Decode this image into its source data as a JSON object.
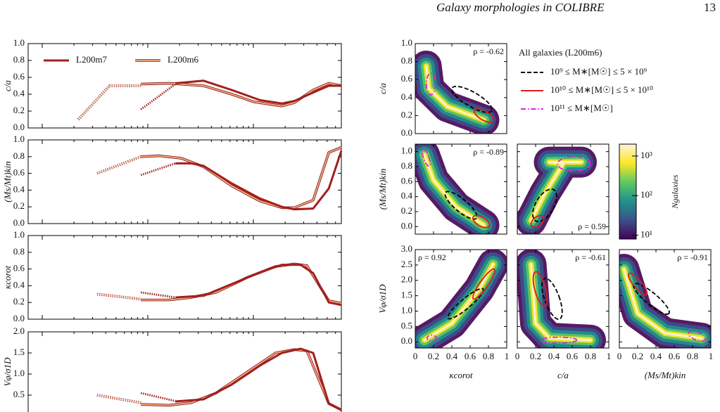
{
  "header": {
    "title": "Galaxy morphologies in COLIBRE",
    "page": "13"
  },
  "chart_data": [
    {
      "type": "line",
      "ylabel": "c/a",
      "xlim": [
        0,
        100
      ],
      "ylim": [
        0,
        1
      ],
      "yticks": [
        {
          "value": 0,
          "label": "0.0"
        },
        0.2,
        0.4,
        0.6,
        0.8,
        {
          "value": 1,
          "label": "1.0"
        }
      ],
      "legend": "upper left",
      "series": [
        {
          "name": "L200m7",
          "color": "#a31f1f",
          "x": [
            47,
            56,
            65,
            74,
            81,
            85,
            91,
            96,
            100
          ],
          "values": [
            0.53,
            0.56,
            0.45,
            0.33,
            0.29,
            0.32,
            0.42,
            0.5,
            0.5
          ]
        },
        {
          "name": "L200m6",
          "color": "#f4b183",
          "edgecolor": "#8b1a1a",
          "x": [
            36,
            45,
            56,
            65,
            72,
            81,
            85,
            91,
            96,
            100
          ],
          "values": [
            0.52,
            0.53,
            0.5,
            0.4,
            0.31,
            0.26,
            0.3,
            0.45,
            0.53,
            0.5
          ]
        },
        {
          "color": "#a31f1f",
          "linestyle": "dotted",
          "x": [
            36,
            47
          ],
          "values": [
            0.22,
            0.52
          ]
        },
        {
          "color": "#f4b183",
          "edgecolor": "#8b1a1a",
          "linestyle": "dotted",
          "x": [
            16,
            26,
            36
          ],
          "values": [
            0.1,
            0.5,
            0.5
          ]
        }
      ]
    },
    {
      "type": "line",
      "ylabel": "(Ms/Mt)kin",
      "xlim": [
        0,
        100
      ],
      "ylim": [
        0,
        1
      ],
      "yticks": [
        {
          "value": 0,
          "label": "0.0"
        },
        0.2,
        0.4,
        0.6,
        0.8,
        {
          "value": 1,
          "label": "1.0"
        }
      ],
      "series": [
        {
          "color": "#a31f1f",
          "x": [
            47,
            52,
            56,
            65,
            74,
            81,
            85,
            91,
            96,
            100
          ],
          "values": [
            0.72,
            0.72,
            0.69,
            0.48,
            0.3,
            0.2,
            0.17,
            0.18,
            0.42,
            0.87
          ]
        },
        {
          "color": "#f4b183",
          "edgecolor": "#8b1a1a",
          "x": [
            36,
            42,
            49,
            56,
            65,
            74,
            81,
            85,
            91,
            96,
            100
          ],
          "values": [
            0.8,
            0.81,
            0.78,
            0.68,
            0.45,
            0.27,
            0.19,
            0.19,
            0.28,
            0.85,
            0.91
          ]
        },
        {
          "color": "#a31f1f",
          "linestyle": "dotted",
          "x": [
            36,
            47
          ],
          "values": [
            0.58,
            0.72
          ]
        },
        {
          "color": "#f4b183",
          "edgecolor": "#8b1a1a",
          "linestyle": "dotted",
          "x": [
            22,
            36
          ],
          "values": [
            0.6,
            0.8
          ]
        }
      ]
    },
    {
      "type": "line",
      "ylabel": "κcorot",
      "xlim": [
        0,
        100
      ],
      "ylim": [
        0,
        1
      ],
      "yticks": [
        {
          "value": 0,
          "label": "0.0"
        },
        0.2,
        0.4,
        0.6,
        0.8,
        {
          "value": 1,
          "label": "1.0"
        }
      ],
      "series": [
        {
          "color": "#a31f1f",
          "x": [
            47,
            56,
            65,
            74,
            81,
            87,
            91,
            96,
            100
          ],
          "values": [
            0.26,
            0.28,
            0.42,
            0.56,
            0.65,
            0.65,
            0.55,
            0.2,
            0.17
          ]
        },
        {
          "color": "#f4b183",
          "edgecolor": "#8b1a1a",
          "x": [
            36,
            45,
            52,
            60,
            70,
            79,
            85,
            89,
            96,
            100
          ],
          "values": [
            0.23,
            0.23,
            0.26,
            0.32,
            0.5,
            0.63,
            0.66,
            0.64,
            0.22,
            0.19
          ]
        },
        {
          "color": "#a31f1f",
          "linestyle": "dotted",
          "x": [
            36,
            47
          ],
          "values": [
            0.32,
            0.26
          ]
        },
        {
          "color": "#f4b183",
          "edgecolor": "#8b1a1a",
          "linestyle": "dotted",
          "x": [
            22,
            36
          ],
          "values": [
            0.3,
            0.24
          ]
        }
      ]
    },
    {
      "type": "line",
      "ylabel": "Vφ/σ1D",
      "xlim": [
        0,
        100
      ],
      "ylim": [
        0,
        2
      ],
      "yticks": [
        0.5,
        {
          "value": 1,
          "label": "1.0"
        },
        1.5,
        {
          "value": 2,
          "label": "2.0"
        }
      ],
      "series": [
        {
          "color": "#a31f1f",
          "x": [
            47,
            56,
            65,
            74,
            81,
            87,
            91,
            96,
            100
          ],
          "values": [
            0.35,
            0.4,
            0.75,
            1.2,
            1.5,
            1.6,
            1.5,
            0.3,
            0.15
          ]
        },
        {
          "color": "#f4b183",
          "edgecolor": "#8b1a1a",
          "x": [
            36,
            45,
            52,
            60,
            70,
            79,
            85,
            89,
            96,
            100
          ],
          "values": [
            0.28,
            0.26,
            0.32,
            0.55,
            1.05,
            1.5,
            1.58,
            1.55,
            0.3,
            0.15
          ]
        },
        {
          "color": "#a31f1f",
          "linestyle": "dotted",
          "x": [
            36,
            47
          ],
          "values": [
            0.55,
            0.36
          ]
        },
        {
          "color": "#f4b183",
          "edgecolor": "#8b1a1a",
          "linestyle": "dotted",
          "x": [
            22,
            36
          ],
          "values": [
            0.5,
            0.32
          ]
        }
      ]
    }
  ],
  "corner": {
    "columns": [
      {
        "xlabel": "κcorot",
        "xlim": [
          0,
          1
        ],
        "xticks": [
          0,
          0.2,
          0.4,
          0.6,
          0.8,
          1
        ]
      },
      {
        "xlabel": "c/a",
        "xlim": [
          0,
          1
        ],
        "xticks": [
          0,
          0.2,
          0.4,
          0.6,
          0.8,
          1
        ]
      },
      {
        "xlabel": "(Ms/Mt)kin",
        "xlim": [
          0,
          1
        ],
        "xticks": [
          0,
          0.2,
          0.4,
          0.6,
          0.8,
          1
        ]
      }
    ],
    "rows": [
      {
        "ylabel": "c/a",
        "ylim": [
          0,
          1
        ],
        "yticks": [
          {
            "value": 0,
            "label": "0.0"
          },
          0.2,
          0.4,
          0.6,
          0.8,
          {
            "value": 1,
            "label": "1.0"
          }
        ],
        "cells": [
          {
            "annotation": "ρ = -0.62",
            "loc": "upper right"
          }
        ]
      },
      {
        "ylabel": "(Ms/Mt)kin",
        "ylim": [
          -0.1,
          1.1
        ],
        "yticks": [
          {
            "value": 0,
            "label": "0.0"
          },
          0.2,
          0.4,
          0.6,
          0.8,
          {
            "value": 1,
            "label": "1.0"
          }
        ],
        "cells": [
          {
            "annotation": "ρ = -0.89",
            "loc": "upper right"
          },
          {
            "annotation": "ρ = 0.59",
            "loc": "lower right"
          }
        ]
      },
      {
        "ylabel": "Vφ/σ1D",
        "ylim": [
          -0.2,
          3
        ],
        "yticks": [
          {
            "value": 0,
            "label": "0.0"
          },
          0.5,
          {
            "value": 1,
            "label": "1.0"
          },
          1.5,
          {
            "value": 2,
            "label": "2.0"
          },
          2.5,
          {
            "value": 3,
            "label": "3.0"
          }
        ],
        "cells": [
          {
            "annotation": "ρ = 0.92",
            "loc": "upper left"
          },
          {
            "annotation": "ρ = -0.61",
            "loc": "upper right"
          },
          {
            "annotation": "ρ = -0.91",
            "loc": "upper right"
          }
        ]
      }
    ],
    "colorbar": {
      "label": "Ngalaxies",
      "log": true,
      "lim": [
        8,
        2000
      ],
      "ticks": [
        {
          "value": 1000,
          "label": "10³"
        },
        {
          "value": 100,
          "label": "10²"
        },
        {
          "value": 10,
          "label": "10¹"
        }
      ]
    },
    "legend": {
      "title": "All galaxies (L200m6)",
      "entries": [
        {
          "label": "10⁹  ≤ M∗[M☉] ≤ 5 × 10⁹",
          "color": "#000000",
          "linestyle": "dashed"
        },
        {
          "label": "10¹⁰ ≤ M∗[M☉] ≤ 5 × 10¹⁰",
          "color": "#e31a1c",
          "linestyle": "solid"
        },
        {
          "label": "10¹¹ ≤ M∗[M☉]",
          "color": "#e020e0",
          "linestyle": "dashdot"
        }
      ]
    }
  }
}
